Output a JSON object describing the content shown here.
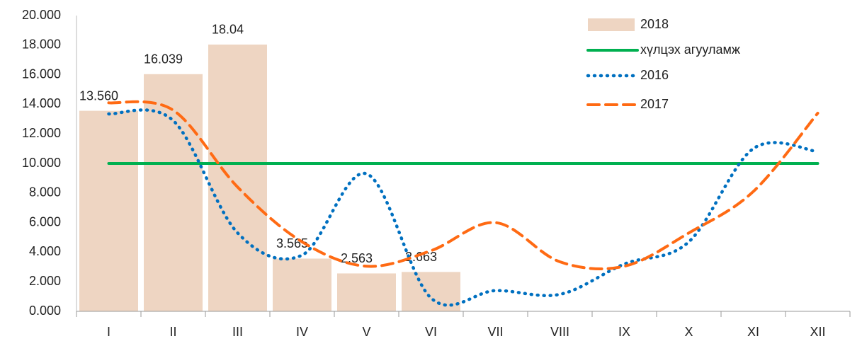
{
  "chart_data": {
    "type": "bar-line",
    "categories": [
      "I",
      "II",
      "III",
      "IV",
      "V",
      "VI",
      "VII",
      "VIII",
      "IX",
      "X",
      "XI",
      "XII"
    ],
    "series": [
      {
        "name": "2018",
        "type": "bar",
        "color": "#eed5c2",
        "values": [
          13.56,
          16.039,
          18.04,
          3.565,
          2.563,
          2.663,
          null,
          null,
          null,
          null,
          null,
          null
        ],
        "value_labels": [
          "13.560",
          "16.039",
          "18.04",
          "3.565",
          "2.563",
          "2.663",
          null,
          null,
          null,
          null,
          null,
          null
        ]
      },
      {
        "name": "хүлцэх агууламж",
        "type": "line",
        "style": "solid",
        "color": "#00b050",
        "values": [
          10,
          10,
          10,
          10,
          10,
          10,
          10,
          10,
          10,
          10,
          10,
          10
        ]
      },
      {
        "name": "2016",
        "type": "line",
        "style": "dotted",
        "color": "#0070c0",
        "values": [
          13.35,
          12.9,
          5.3,
          3.8,
          9.3,
          0.9,
          1.4,
          1.15,
          3.2,
          4.7,
          11.0,
          10.8
        ]
      },
      {
        "name": "2017",
        "type": "line",
        "style": "dashed",
        "color": "#ff6a13",
        "values": [
          14.1,
          13.6,
          8.4,
          4.7,
          3.05,
          4.1,
          6.0,
          3.35,
          3.05,
          5.3,
          8.1,
          13.4
        ]
      }
    ],
    "ylim": [
      0,
      20
    ],
    "yticks": [
      {
        "value": 0,
        "label": "0.000"
      },
      {
        "value": 2,
        "label": "2.000"
      },
      {
        "value": 4,
        "label": "4.000"
      },
      {
        "value": 6,
        "label": "6.000"
      },
      {
        "value": 8,
        "label": "8.000"
      },
      {
        "value": 10,
        "label": "10.000"
      },
      {
        "value": 12,
        "label": "12.000"
      },
      {
        "value": 14,
        "label": "14.000"
      },
      {
        "value": 16,
        "label": "16.000"
      },
      {
        "value": 18,
        "label": "18.000"
      },
      {
        "value": 20,
        "label": "20.000"
      }
    ],
    "legend": "top-right",
    "grid": false
  }
}
